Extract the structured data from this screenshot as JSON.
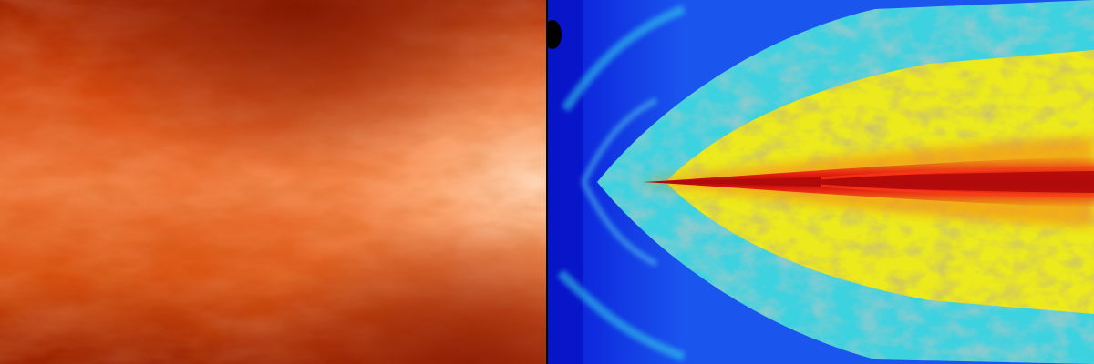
{
  "image": {
    "panels": [
      {
        "subject": "density-field",
        "palette": {
          "dark": "#8a1a00",
          "mid": "#e4521a",
          "bright": "#ffb07a",
          "core": "#ffd2ad"
        }
      },
      {
        "subject": "velocity-field",
        "palette": {
          "deep_blue": "#0a1ee8",
          "blue": "#1c6ef5",
          "cyan": "#3fd8e6",
          "teal": "#5fa8a4",
          "gray": "#7d8c8a",
          "yellow": "#f2ee1a",
          "orange": "#f39a12",
          "red": "#e40f0f",
          "dark_red": "#9c0a0a"
        }
      }
    ]
  }
}
